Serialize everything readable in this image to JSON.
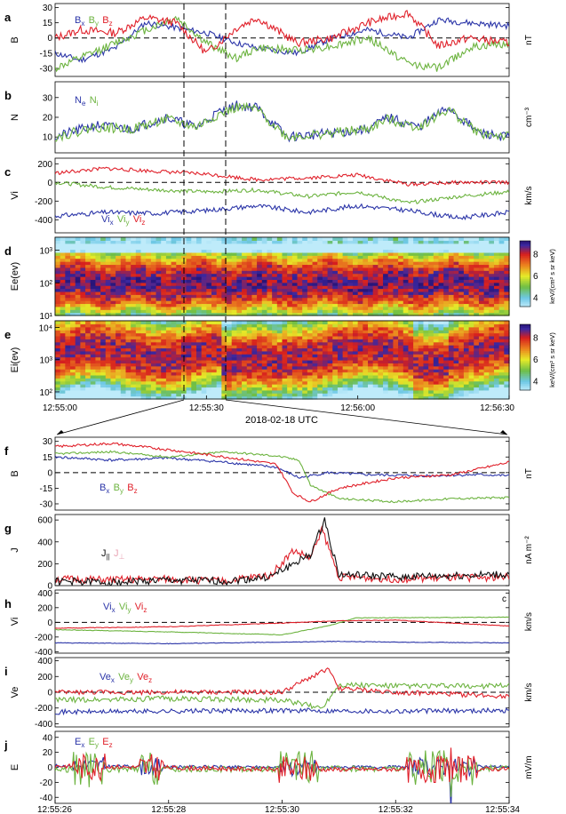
{
  "colors": {
    "x": "#2b35a8",
    "y": "#6cb33f",
    "z": "#e0202a",
    "black": "#111111",
    "pink": "#e9a5b5"
  },
  "figure": {
    "date_label": "2018-02-18 UTC"
  },
  "chart_data": [
    {
      "id": "a",
      "type": "line",
      "panel_label": "a",
      "ylabel": "B",
      "unit": "nT",
      "ylim": [
        -38,
        34
      ],
      "yticks": [
        -30,
        -15,
        0,
        15,
        30
      ],
      "x_range_s": [
        0,
        90
      ],
      "zero_line": true,
      "legend": [
        {
          "t": "B",
          "s": "x",
          "c": "x"
        },
        {
          "t": "B",
          "s": "y",
          "c": "y"
        },
        {
          "t": "B",
          "s": "z",
          "c": "z"
        }
      ],
      "series": [
        {
          "name": "Bx",
          "color": "x",
          "seed": 11,
          "noise": 3,
          "x": [
            0,
            5,
            12,
            18,
            24,
            30,
            36,
            40,
            48,
            55,
            62,
            70,
            76,
            82,
            90
          ],
          "values": [
            -15,
            -22,
            -10,
            15,
            10,
            5,
            -5,
            -10,
            -15,
            0,
            8,
            0,
            18,
            15,
            12
          ]
        },
        {
          "name": "By",
          "color": "y",
          "seed": 12,
          "noise": 4,
          "x": [
            0,
            5,
            12,
            18,
            24,
            30,
            36,
            40,
            48,
            55,
            62,
            70,
            76,
            82,
            90
          ],
          "values": [
            -30,
            -20,
            -5,
            8,
            20,
            -5,
            -20,
            -10,
            -12,
            -8,
            0,
            -25,
            -30,
            -10,
            -5
          ]
        },
        {
          "name": "Bz",
          "color": "z",
          "seed": 13,
          "noise": 4,
          "x": [
            0,
            5,
            12,
            18,
            24,
            30,
            36,
            40,
            48,
            55,
            62,
            70,
            76,
            82,
            90
          ],
          "values": [
            0,
            8,
            5,
            20,
            15,
            -15,
            10,
            20,
            -5,
            0,
            15,
            25,
            -8,
            0,
            -5
          ]
        }
      ]
    },
    {
      "id": "b",
      "type": "line",
      "panel_label": "b",
      "ylabel": "N",
      "unit": "cm⁻³",
      "ylim": [
        2,
        38
      ],
      "yticks": [
        10,
        20,
        30
      ],
      "x_range_s": [
        0,
        90
      ],
      "legend": [
        {
          "t": "N",
          "s": "e",
          "c": "x"
        },
        {
          "t": "N",
          "s": "i",
          "c": "y"
        }
      ],
      "series": [
        {
          "name": "Ne",
          "color": "x",
          "seed": 21,
          "noise": 2.5,
          "x": [
            0,
            8,
            15,
            22,
            28,
            32,
            36,
            40,
            46,
            55,
            62,
            66,
            72,
            78,
            84,
            90
          ],
          "values": [
            10,
            16,
            14,
            20,
            15,
            22,
            26,
            25,
            10,
            12,
            14,
            20,
            15,
            25,
            12,
            10
          ]
        },
        {
          "name": "Ni",
          "color": "y",
          "seed": 22,
          "noise": 2.5,
          "x": [
            0,
            8,
            15,
            22,
            28,
            32,
            36,
            40,
            46,
            55,
            62,
            66,
            72,
            78,
            84,
            90
          ],
          "values": [
            10,
            15,
            14,
            19,
            15,
            21,
            25,
            24,
            10,
            12,
            14,
            19,
            15,
            24,
            12,
            10
          ]
        }
      ]
    },
    {
      "id": "c",
      "type": "line",
      "panel_label": "c",
      "ylabel": "Vi",
      "unit": "km/s",
      "ylim": [
        -540,
        260
      ],
      "yticks": [
        -400,
        -200,
        0,
        200
      ],
      "x_range_s": [
        0,
        90
      ],
      "zero_line": true,
      "legend": [
        {
          "t": "Vi",
          "s": "x",
          "c": "x"
        },
        {
          "t": "Vi",
          "s": "y",
          "c": "y"
        },
        {
          "t": "Vi",
          "s": "z",
          "c": "z"
        }
      ],
      "series": [
        {
          "name": "Vix",
          "color": "x",
          "seed": 31,
          "noise": 25,
          "x": [
            0,
            10,
            20,
            30,
            40,
            50,
            60,
            70,
            80,
            90
          ],
          "values": [
            -360,
            -320,
            -330,
            -300,
            -250,
            -320,
            -250,
            -300,
            -380,
            -320
          ]
        },
        {
          "name": "Viy",
          "color": "y",
          "seed": 32,
          "noise": 20,
          "x": [
            0,
            10,
            20,
            30,
            40,
            50,
            60,
            70,
            80,
            90
          ],
          "values": [
            0,
            -50,
            -80,
            -100,
            -80,
            -150,
            -100,
            -220,
            -150,
            -100
          ]
        },
        {
          "name": "Viz",
          "color": "z",
          "seed": 33,
          "noise": 20,
          "x": [
            0,
            10,
            20,
            30,
            40,
            50,
            60,
            70,
            80,
            90
          ],
          "values": [
            100,
            150,
            120,
            90,
            30,
            50,
            80,
            -20,
            0,
            0
          ]
        }
      ]
    },
    {
      "id": "d",
      "type": "heatmap",
      "panel_label": "d",
      "ylabel": "Ee(ev)",
      "ylog": true,
      "ylim": [
        10,
        2500
      ],
      "yticks_labels": [
        "10¹",
        "10²",
        "10³"
      ],
      "ytick_values": [
        10,
        100,
        1000
      ],
      "colorbar": {
        "label": "keV/(cm² s sr keV)",
        "ticks": [
          4,
          6,
          8
        ],
        "range": [
          3.2,
          9.2
        ]
      }
    },
    {
      "id": "e",
      "type": "heatmap",
      "panel_label": "e",
      "ylabel": "Ei(ev)",
      "ylog": true,
      "ylim": [
        60,
        16000
      ],
      "yticks_labels": [
        "10²",
        "10³",
        "10⁴"
      ],
      "ytick_values": [
        100,
        1000,
        10000
      ],
      "colorbar": {
        "label": "keV/(cm² s sr keV)",
        "ticks": [
          4,
          6,
          8
        ],
        "range": [
          3.2,
          9.2
        ]
      }
    },
    {
      "id": "f",
      "type": "line",
      "panel_label": "f",
      "ylabel": "B",
      "unit": "nT",
      "ylim": [
        -36,
        34
      ],
      "yticks": [
        -30,
        -15,
        0,
        15,
        30
      ],
      "x_range_s": [
        0,
        8
      ],
      "zero_line": true,
      "legend": [
        {
          "t": "B",
          "s": "x",
          "c": "x"
        },
        {
          "t": "B",
          "s": "y",
          "c": "y"
        },
        {
          "t": "B",
          "s": "z",
          "c": "z"
        }
      ],
      "series": [
        {
          "name": "Bx",
          "color": "x",
          "seed": 41,
          "noise": 1.2,
          "x": [
            0,
            1,
            2,
            3,
            3.9,
            4.3,
            4.8,
            5.5,
            6.5,
            7.5,
            8
          ],
          "values": [
            15,
            12,
            14,
            10,
            5,
            -5,
            0,
            -2,
            -3,
            -2,
            -3
          ]
        },
        {
          "name": "By",
          "color": "y",
          "seed": 42,
          "noise": 1,
          "x": [
            0,
            1,
            2,
            3,
            3.9,
            4.3,
            4.5,
            5,
            6,
            7,
            8
          ],
          "values": [
            18,
            20,
            15,
            20,
            16,
            12,
            -12,
            -25,
            -28,
            -25,
            -24
          ]
        },
        {
          "name": "Bz",
          "color": "z",
          "seed": 43,
          "noise": 1.2,
          "x": [
            0,
            1,
            2,
            3,
            3.9,
            4.2,
            4.5,
            5,
            6,
            7,
            8
          ],
          "values": [
            25,
            28,
            22,
            15,
            8,
            -20,
            -28,
            -15,
            -5,
            -2,
            10
          ]
        }
      ]
    },
    {
      "id": "g",
      "type": "line",
      "panel_label": "g",
      "ylabel": "J",
      "unit": "nA m⁻²",
      "ylim": [
        0,
        650
      ],
      "yticks": [
        0,
        200,
        400,
        600
      ],
      "x_range_s": [
        0,
        8
      ],
      "legend": [
        {
          "t": "J",
          "s": "||",
          "c": "black"
        },
        {
          "t": "J",
          "s": "⊥",
          "c": "pink"
        }
      ],
      "series": [
        {
          "name": "J_perp",
          "color": "z",
          "seed": 51,
          "noise": 35,
          "x": [
            0,
            1,
            2,
            3,
            3.8,
            4.2,
            4.5,
            4.7,
            5,
            6,
            7,
            8
          ],
          "values": [
            60,
            50,
            60,
            40,
            100,
            320,
            250,
            520,
            80,
            60,
            70,
            80
          ]
        },
        {
          "name": "J_par",
          "color": "black",
          "seed": 52,
          "noise": 35,
          "x": [
            0,
            1,
            2,
            3,
            3.8,
            4.2,
            4.5,
            4.75,
            5,
            6,
            7,
            8
          ],
          "values": [
            40,
            30,
            50,
            40,
            80,
            200,
            280,
            600,
            100,
            80,
            90,
            100
          ]
        }
      ]
    },
    {
      "id": "h",
      "type": "line",
      "panel_label": "h",
      "ylabel": "Vi",
      "unit": "km/s",
      "corner_label": "c",
      "ylim": [
        -420,
        440
      ],
      "yticks": [
        -400,
        -200,
        0,
        200,
        400
      ],
      "x_range_s": [
        0,
        8
      ],
      "zero_line": true,
      "legend": [
        {
          "t": "Vi",
          "s": "x",
          "c": "x"
        },
        {
          "t": "Vi",
          "s": "y",
          "c": "y"
        },
        {
          "t": "Vi",
          "s": "z",
          "c": "z"
        }
      ],
      "series": [
        {
          "name": "Vix",
          "color": "x",
          "seed": 61,
          "noise": 4,
          "x": [
            0,
            2,
            4,
            5,
            6,
            8
          ],
          "values": [
            -280,
            -290,
            -270,
            -260,
            -270,
            -280
          ]
        },
        {
          "name": "Viy",
          "color": "y",
          "seed": 62,
          "noise": 4,
          "x": [
            0,
            2,
            4,
            4.8,
            5.3,
            8
          ],
          "values": [
            -100,
            -130,
            -170,
            -50,
            60,
            70
          ]
        },
        {
          "name": "Viz",
          "color": "z",
          "seed": 63,
          "noise": 4,
          "x": [
            0,
            2,
            4,
            5,
            6,
            8
          ],
          "values": [
            -80,
            -60,
            -10,
            20,
            30,
            -50
          ]
        }
      ]
    },
    {
      "id": "i",
      "type": "line",
      "panel_label": "i",
      "ylabel": "Ve",
      "unit": "km/s",
      "ylim": [
        -440,
        440
      ],
      "yticks": [
        -400,
        -200,
        0,
        200,
        400
      ],
      "x_range_s": [
        0,
        8
      ],
      "zero_line": true,
      "legend": [
        {
          "t": "Ve",
          "s": "x",
          "c": "x"
        },
        {
          "t": "Ve",
          "s": "y",
          "c": "y"
        },
        {
          "t": "Ve",
          "s": "z",
          "c": "z"
        }
      ],
      "series": [
        {
          "name": "Vex",
          "color": "x",
          "seed": 71,
          "noise": 30,
          "x": [
            0,
            2,
            4,
            6,
            8
          ],
          "values": [
            -250,
            -240,
            -230,
            -240,
            -230
          ]
        },
        {
          "name": "Vey",
          "color": "y",
          "seed": 72,
          "noise": 35,
          "x": [
            0,
            2,
            4,
            4.7,
            5,
            6,
            8
          ],
          "values": [
            -100,
            -80,
            -100,
            -200,
            100,
            80,
            80
          ]
        },
        {
          "name": "Vez",
          "color": "z",
          "seed": 73,
          "noise": 30,
          "x": [
            0,
            2,
            4,
            4.8,
            5,
            6,
            8
          ],
          "values": [
            0,
            0,
            0,
            300,
            50,
            0,
            -50
          ]
        }
      ]
    },
    {
      "id": "j",
      "type": "line",
      "panel_label": "j",
      "ylabel": "E",
      "unit": "mV/m",
      "ylim": [
        -48,
        48
      ],
      "yticks": [
        -40,
        -20,
        0,
        20,
        40
      ],
      "x_range_s": [
        0,
        8
      ],
      "xticks": [
        "12:55:26",
        "12:55:28",
        "12:55:30",
        "12:55:32",
        "12:55:34"
      ],
      "legend": [
        {
          "t": "E",
          "s": "x",
          "c": "x"
        },
        {
          "t": "E",
          "s": "y",
          "c": "y"
        },
        {
          "t": "E",
          "s": "z",
          "c": "z"
        }
      ],
      "series": [
        {
          "name": "Ex",
          "color": "x",
          "seed": 81,
          "noise": 2,
          "x": [
            0,
            4,
            8
          ],
          "values": [
            2,
            0,
            1
          ]
        },
        {
          "name": "Ey",
          "color": "y",
          "seed": 82,
          "noise": 4,
          "x": [
            0,
            4,
            8
          ],
          "values": [
            -3,
            -2,
            -1
          ]
        },
        {
          "name": "Ez",
          "color": "z",
          "seed": 83,
          "noise": 3,
          "x": [
            0,
            4,
            8
          ],
          "values": [
            2,
            -3,
            -2
          ]
        }
      ]
    }
  ],
  "top_xticks": [
    "12:55:00",
    "12:55:30",
    "12:56:00",
    "12:56:30"
  ]
}
